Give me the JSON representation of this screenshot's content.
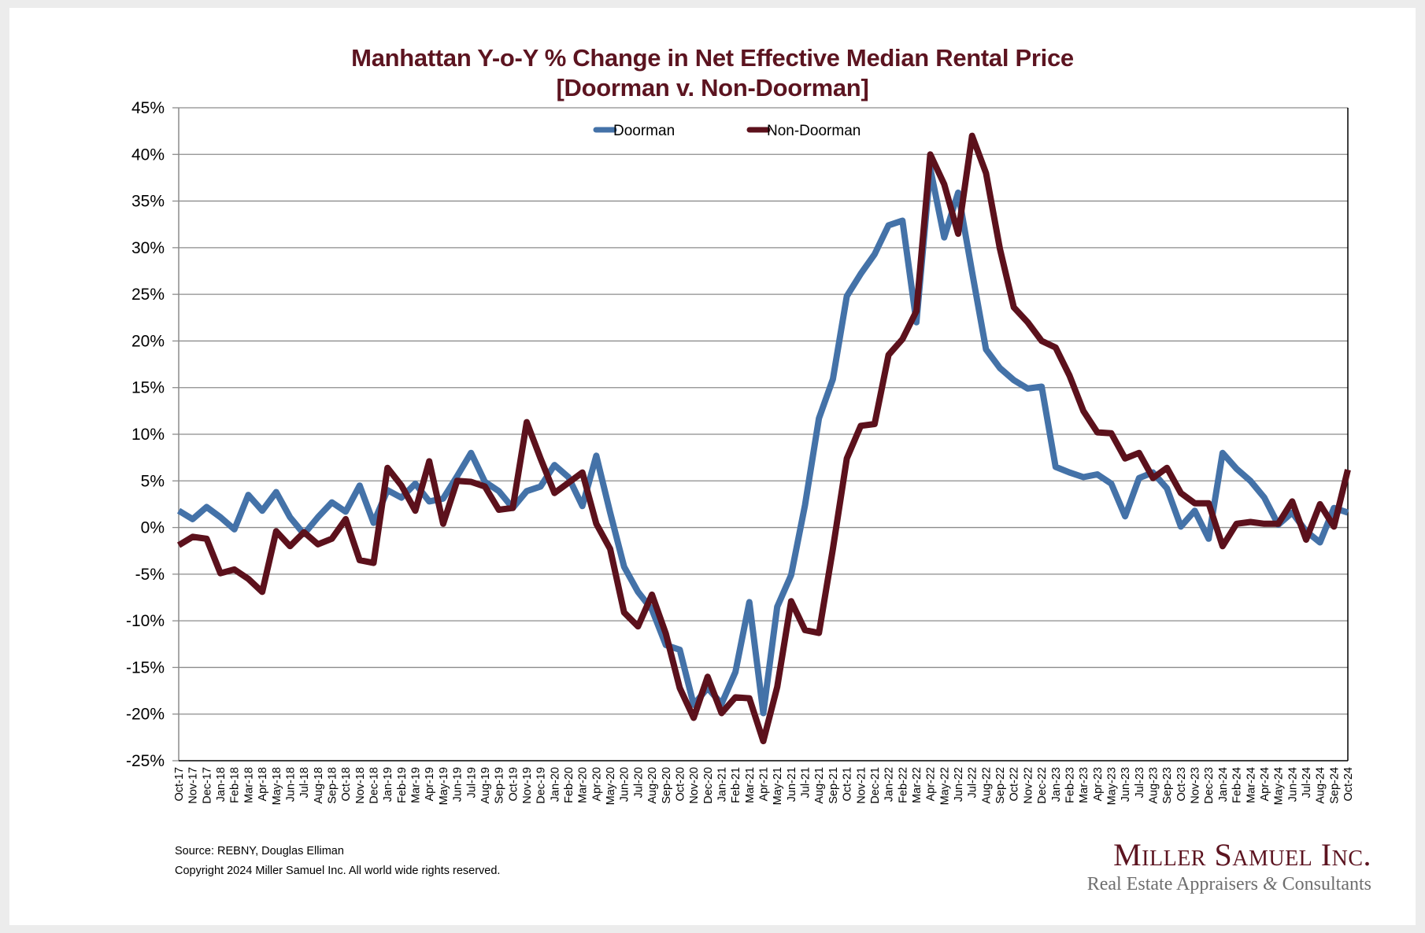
{
  "chart_data": {
    "type": "line",
    "title": "Manhattan Y-o-Y % Change in Net Effective Median Rental Price",
    "subtitle": "[Doorman v. Non-Doorman]",
    "xlabel": "",
    "ylabel": "",
    "ylim": [
      -25,
      45
    ],
    "yticks": [
      45,
      40,
      35,
      30,
      25,
      20,
      15,
      10,
      5,
      0,
      -5,
      -10,
      -15,
      -20,
      -25
    ],
    "ytick_labels": [
      "45%",
      "40%",
      "35%",
      "30%",
      "25%",
      "20%",
      "15%",
      "10%",
      "5%",
      "0%",
      "-5%",
      "-10%",
      "-15%",
      "-20%",
      "-25%"
    ],
    "grid": true,
    "legend_position": "top-center",
    "categories": [
      "Oct-17",
      "Nov-17",
      "Dec-17",
      "Jan-18",
      "Feb-18",
      "Mar-18",
      "Apr-18",
      "May-18",
      "Jun-18",
      "Jul-18",
      "Aug-18",
      "Sep-18",
      "Oct-18",
      "Nov-18",
      "Dec-18",
      "Jan-19",
      "Feb-19",
      "Mar-19",
      "Apr-19",
      "May-19",
      "Jun-19",
      "Jul-19",
      "Aug-19",
      "Sep-19",
      "Oct-19",
      "Nov-19",
      "Dec-19",
      "Jan-20",
      "Feb-20",
      "Mar-20",
      "Apr-20",
      "May-20",
      "Jun-20",
      "Jul-20",
      "Aug-20",
      "Sep-20",
      "Oct-20",
      "Nov-20",
      "Dec-20",
      "Jan-21",
      "Feb-21",
      "Mar-21",
      "Apr-21",
      "May-21",
      "Jun-21",
      "Jul-21",
      "Aug-21",
      "Sep-21",
      "Oct-21",
      "Nov-21",
      "Dec-21",
      "Jan-22",
      "Feb-22",
      "Mar-22",
      "Apr-22",
      "May-22",
      "Jun-22",
      "Jul-22",
      "Aug-22",
      "Sep-22",
      "Oct-22",
      "Nov-22",
      "Dec-22",
      "Jan-23",
      "Feb-23",
      "Mar-23",
      "Apr-23",
      "May-23",
      "Jun-23",
      "Jul-23",
      "Aug-23",
      "Sep-23",
      "Oct-23",
      "Nov-23",
      "Dec-23",
      "Jan-24",
      "Feb-24",
      "Mar-24",
      "Apr-24",
      "May-24",
      "Jun-24",
      "Jul-24",
      "Aug-24",
      "Sep-24",
      "Oct-24"
    ],
    "series": [
      {
        "name": "Doorman",
        "color": "#4472a8",
        "values": [
          1.8,
          0.9,
          2.2,
          1.1,
          -0.2,
          3.5,
          1.8,
          3.8,
          1.1,
          -0.7,
          1.1,
          2.7,
          1.7,
          4.5,
          0.5,
          4.0,
          3.2,
          4.7,
          2.8,
          3.1,
          5.5,
          8.0,
          4.9,
          3.9,
          2.1,
          3.9,
          4.4,
          6.7,
          5.4,
          2.3,
          7.7,
          1.6,
          -4.2,
          -6.9,
          -8.8,
          -12.6,
          -13.1,
          -19.0,
          -17.2,
          -18.9,
          -15.5,
          -8.0,
          -19.9,
          -8.5,
          -5.1,
          2.4,
          11.7,
          15.9,
          24.8,
          27.2,
          29.3,
          32.4,
          32.9,
          22.0,
          38.5,
          31.1,
          35.9,
          27.4,
          19.1,
          17.1,
          15.8,
          14.9,
          15.1,
          6.5,
          5.9,
          5.4,
          5.7,
          4.7,
          1.2,
          5.3,
          5.9,
          4.2,
          0.1,
          1.8,
          -1.2,
          8.0,
          6.3,
          5.0,
          3.2,
          0.3,
          1.6,
          -0.4,
          -1.6,
          2.1,
          1.6
        ]
      },
      {
        "name": "Non-Doorman",
        "color": "#5c111c",
        "values": [
          -1.9,
          -1.0,
          -1.2,
          -4.9,
          -4.5,
          -5.5,
          -6.9,
          -0.4,
          -2.0,
          -0.5,
          -1.8,
          -1.2,
          0.9,
          -3.5,
          -3.8,
          6.4,
          4.5,
          1.8,
          7.1,
          0.4,
          5.0,
          4.9,
          4.4,
          1.9,
          2.1,
          11.3,
          7.4,
          3.7,
          4.8,
          5.9,
          0.4,
          -2.3,
          -9.1,
          -10.6,
          -7.2,
          -11.4,
          -17.2,
          -20.4,
          -16.0,
          -19.9,
          -18.2,
          -18.3,
          -22.9,
          -17.1,
          -7.9,
          -11.0,
          -11.3,
          -2.3,
          7.4,
          10.9,
          11.1,
          18.5,
          20.2,
          23.2,
          40.0,
          36.8,
          31.5,
          42.0,
          38.0,
          29.9,
          23.6,
          22.0,
          20.0,
          19.3,
          16.3,
          12.5,
          10.2,
          10.1,
          7.4,
          8.0,
          5.3,
          6.4,
          3.7,
          2.6,
          2.6,
          -2.0,
          0.4,
          0.6,
          0.4,
          0.4,
          2.8,
          -1.3,
          2.5,
          0.1,
          6.2
        ]
      }
    ]
  },
  "footer": {
    "source": "Source: REBNY, Douglas Elliman",
    "copyright": "Copyright 2024 Miller Samuel Inc.  All world wide rights reserved."
  },
  "logo": {
    "name": "Miller Samuel Inc.",
    "tagline_part1": "Real Estate Appraisers ",
    "tagline_amp": "&",
    "tagline_part2": " Consultants"
  }
}
